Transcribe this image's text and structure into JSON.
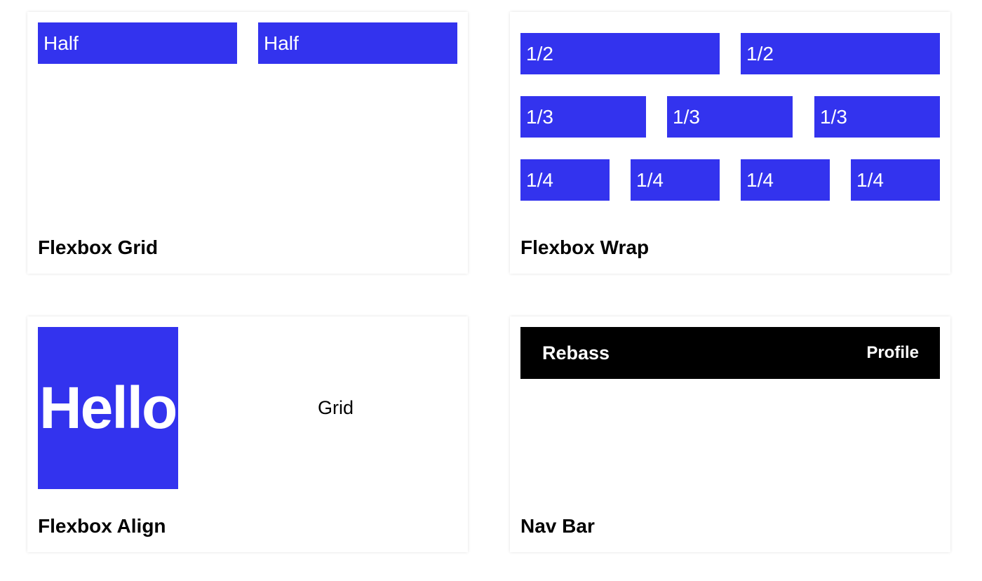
{
  "accent_color": "#3333ee",
  "cards": [
    {
      "title": "Flexbox Grid",
      "boxes": [
        "Half",
        "Half"
      ]
    },
    {
      "title": "Flexbox Wrap",
      "rows": [
        [
          "1/2",
          "1/2"
        ],
        [
          "1/3",
          "1/3",
          "1/3"
        ],
        [
          "1/4",
          "1/4",
          "1/4",
          "1/4"
        ]
      ]
    },
    {
      "title": "Flexbox Align",
      "hello": "Hello",
      "grid": "Grid"
    },
    {
      "title": "Nav Bar",
      "nav": {
        "brand": "Rebass",
        "link": "Profile"
      }
    }
  ]
}
